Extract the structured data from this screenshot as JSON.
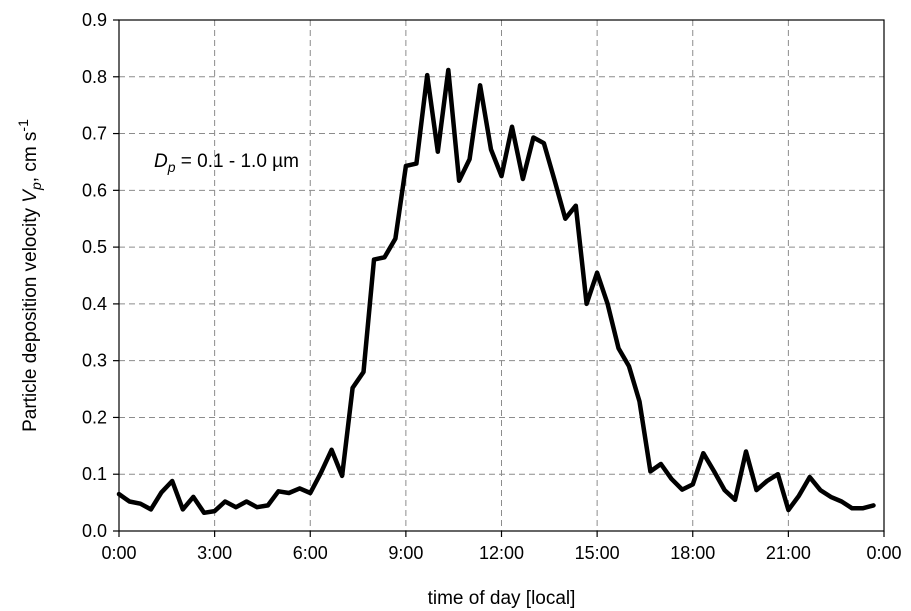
{
  "chart_data": {
    "type": "line",
    "title": "",
    "xlabel": "time  of  day [local]",
    "ylabel": {
      "main": "Particle deposition velocity ",
      "var": "V",
      "sub": "p",
      "unit": ", cm s",
      "sup": "-1"
    },
    "annotation": {
      "var": "D",
      "sub": "p",
      "text": " = 0.1 - 1.0 µm"
    },
    "xlim": [
      0,
      24
    ],
    "ylim": [
      0,
      0.9
    ],
    "x_ticks": [
      0,
      3,
      6,
      9,
      12,
      15,
      18,
      21,
      24
    ],
    "x_tick_labels": [
      "0:00",
      "3:00",
      "6:00",
      "9:00",
      "12:00",
      "15:00",
      "18:00",
      "21:00",
      "0:00"
    ],
    "y_ticks": [
      0,
      0.1,
      0.2,
      0.3,
      0.4,
      0.5,
      0.6,
      0.7,
      0.8,
      0.9
    ],
    "y_tick_labels": [
      "0.0",
      "0.1",
      "0.2",
      "0.3",
      "0.4",
      "0.5",
      "0.6",
      "0.7",
      "0.8",
      "0.9"
    ],
    "grid": true,
    "line_color": "#000000",
    "series": [
      {
        "x": [
          0.0,
          0.33,
          0.67,
          1.0,
          1.33,
          1.67,
          2.0,
          2.33,
          2.67,
          3.0,
          3.33,
          3.67,
          4.0,
          4.33,
          4.67,
          5.0,
          5.33,
          5.67,
          6.0,
          6.33,
          6.67,
          7.0,
          7.33,
          7.67,
          8.0,
          8.33,
          8.67,
          9.0,
          9.33,
          9.67,
          10.0,
          10.33,
          10.67,
          11.0,
          11.33,
          11.67,
          12.0,
          12.33,
          12.67,
          13.0,
          13.33,
          13.67,
          14.0,
          14.33,
          14.67,
          15.0,
          15.33,
          15.67,
          16.0,
          16.33,
          16.67,
          17.0,
          17.33,
          17.67,
          18.0,
          18.33,
          18.67,
          19.0,
          19.33,
          19.67,
          20.0,
          20.33,
          20.67,
          21.0,
          21.33,
          21.67,
          22.0,
          22.33,
          22.67,
          23.0,
          23.33,
          23.67
        ],
        "values": [
          0.065,
          0.052,
          0.048,
          0.038,
          0.068,
          0.088,
          0.038,
          0.06,
          0.032,
          0.035,
          0.052,
          0.042,
          0.052,
          0.042,
          0.045,
          0.07,
          0.067,
          0.075,
          0.067,
          0.102,
          0.143,
          0.097,
          0.252,
          0.28,
          0.478,
          0.482,
          0.515,
          0.643,
          0.647,
          0.803,
          0.668,
          0.812,
          0.617,
          0.655,
          0.785,
          0.672,
          0.625,
          0.712,
          0.62,
          0.693,
          0.683,
          0.617,
          0.55,
          0.573,
          0.4,
          0.455,
          0.4,
          0.322,
          0.29,
          0.228,
          0.105,
          0.118,
          0.092,
          0.073,
          0.082,
          0.137,
          0.105,
          0.072,
          0.055,
          0.14,
          0.072,
          0.088,
          0.1,
          0.037,
          0.062,
          0.095,
          0.072,
          0.06,
          0.052,
          0.04,
          0.04,
          0.045
        ]
      }
    ]
  }
}
